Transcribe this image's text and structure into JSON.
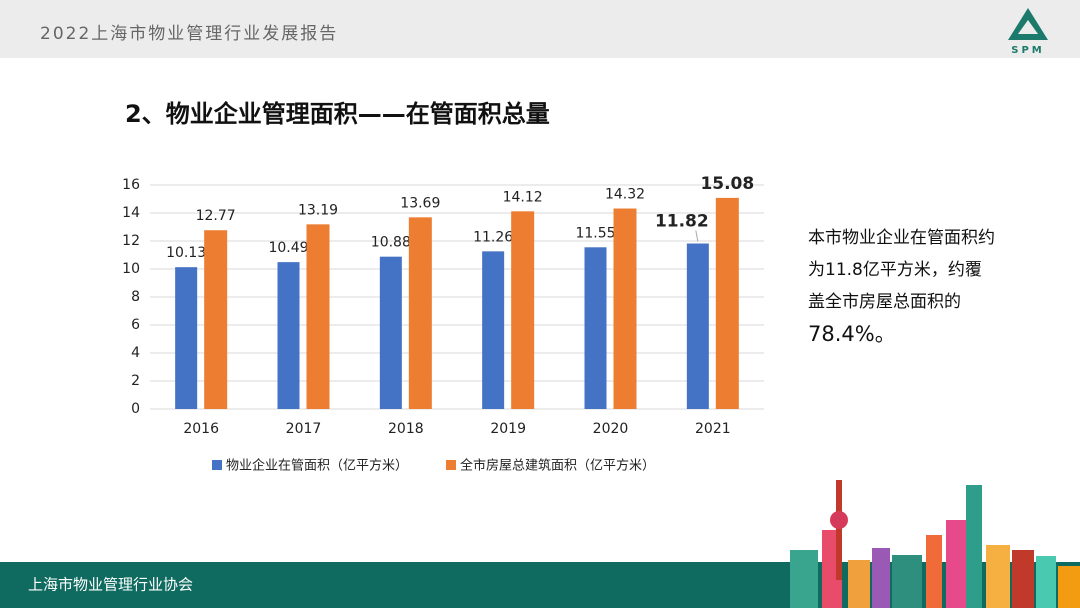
{
  "header": {
    "title": "2022上海市物业管理行业发展报告",
    "logo": "SPM"
  },
  "heading": "2、物业企业管理面积——在管面积总量",
  "chart_data": {
    "type": "bar",
    "categories": [
      "2016",
      "2017",
      "2018",
      "2019",
      "2020",
      "2021"
    ],
    "series": [
      {
        "name": "物业企业在管面积（亿平方米）",
        "color": "#4472c4",
        "values": [
          10.13,
          10.49,
          10.88,
          11.26,
          11.55,
          11.82
        ]
      },
      {
        "name": "全市房屋总建筑面积（亿平方米）",
        "color": "#ed7d31",
        "values": [
          12.77,
          13.19,
          13.69,
          14.12,
          14.32,
          15.08
        ]
      }
    ],
    "ylim": [
      0,
      16
    ],
    "yticks": [
      0,
      2,
      4,
      6,
      8,
      10,
      12,
      14,
      16
    ],
    "grid": true,
    "legend": "bottom"
  },
  "note": {
    "text": "本市物业企业在管面积约为11.8亿平方米，约覆盖全市房屋总面积的",
    "highlight": "78.4%。"
  },
  "footer": {
    "text": "上海市物业管理行业协会"
  }
}
